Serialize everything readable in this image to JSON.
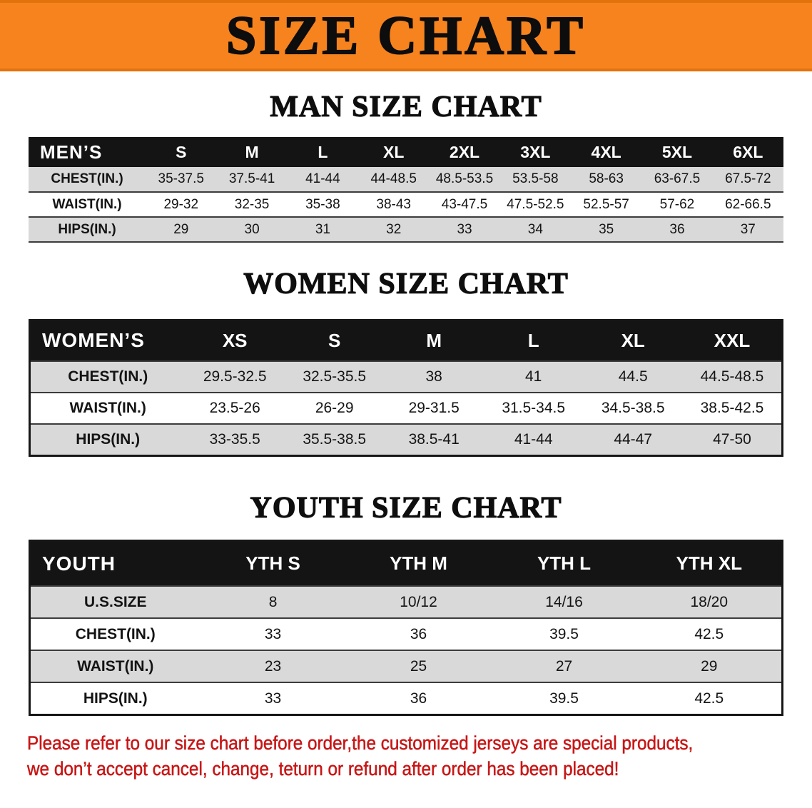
{
  "banner": {
    "title": "SIZE CHART"
  },
  "sections": [
    {
      "heading": "MAN SIZE CHART",
      "table": {
        "corner_label": "MEN’S",
        "columns": [
          "S",
          "M",
          "L",
          "XL",
          "2XL",
          "3XL",
          "4XL",
          "5XL",
          "6XL"
        ],
        "rows": [
          {
            "label": "CHEST(IN.)",
            "values": [
              "35-37.5",
              "37.5-41",
              "41-44",
              "44-48.5",
              "48.5-53.5",
              "53.5-58",
              "58-63",
              "63-67.5",
              "67.5-72"
            ]
          },
          {
            "label": "WAIST(IN.)",
            "values": [
              "29-32",
              "32-35",
              "35-38",
              "38-43",
              "43-47.5",
              "47.5-52.5",
              "52.5-57",
              "57-62",
              "62-66.5"
            ]
          },
          {
            "label": "HIPS(IN.)",
            "values": [
              "29",
              "30",
              "31",
              "32",
              "33",
              "34",
              "35",
              "36",
              "37"
            ]
          }
        ]
      }
    },
    {
      "heading": "WOMEN SIZE CHART",
      "table": {
        "corner_label": "WOMEN’S",
        "columns": [
          "XS",
          "S",
          "M",
          "L",
          "XL",
          "XXL"
        ],
        "rows": [
          {
            "label": "CHEST(IN.)",
            "values": [
              "29.5-32.5",
              "32.5-35.5",
              "38",
              "41",
              "44.5",
              "44.5-48.5"
            ]
          },
          {
            "label": "WAIST(IN.)",
            "values": [
              "23.5-26",
              "26-29",
              "29-31.5",
              "31.5-34.5",
              "34.5-38.5",
              "38.5-42.5"
            ]
          },
          {
            "label": "HIPS(IN.)",
            "values": [
              "33-35.5",
              "35.5-38.5",
              "38.5-41",
              "41-44",
              "44-47",
              "47-50"
            ]
          }
        ]
      }
    },
    {
      "heading": "YOUTH SIZE CHART",
      "table": {
        "corner_label": "YOUTH",
        "columns": [
          "YTH S",
          "YTH M",
          "YTH L",
          "YTH XL"
        ],
        "rows": [
          {
            "label": "U.S.SIZE",
            "values": [
              "8",
              "10/12",
              "14/16",
              "18/20"
            ]
          },
          {
            "label": "CHEST(IN.)",
            "values": [
              "33",
              "36",
              "39.5",
              "42.5"
            ]
          },
          {
            "label": "WAIST(IN.)",
            "values": [
              "23",
              "25",
              "27",
              "29"
            ]
          },
          {
            "label": "HIPS(IN.)",
            "values": [
              "33",
              "36",
              "39.5",
              "42.5"
            ]
          }
        ]
      }
    }
  ],
  "footer": {
    "line1": "Please refer to our size chart before order,the customized jerseys are special products,",
    "line2": "we don’t accept cancel, change, teturn or refund after order has been placed!"
  },
  "colors": {
    "banner_orange": "#f6831e",
    "table_header_black": "#141414",
    "row_gray": "#d9d9d9",
    "note_red": "#c81616"
  }
}
